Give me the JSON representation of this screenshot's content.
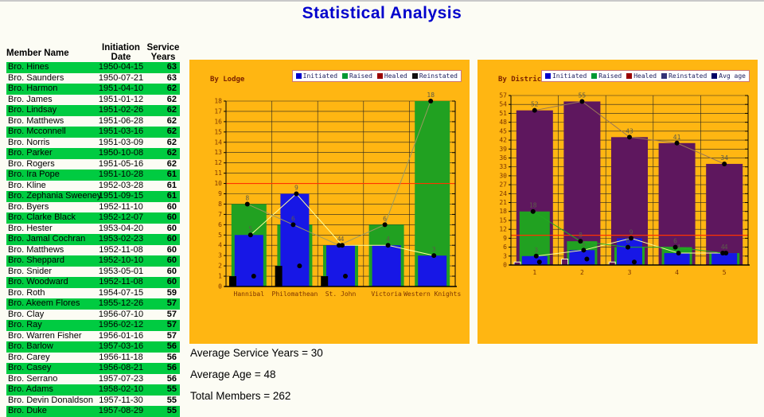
{
  "page": {
    "title": "Statistical Analysis"
  },
  "table": {
    "headers": {
      "name": "Member Name",
      "initiation": [
        "Initiation",
        "Date"
      ],
      "service": [
        "Service",
        "Years"
      ]
    },
    "rows": [
      {
        "name": "Bro. Hines",
        "date": "1950-04-15",
        "years": "63"
      },
      {
        "name": "Bro. Saunders",
        "date": "1950-07-21",
        "years": "63"
      },
      {
        "name": "Bro. Harmon",
        "date": "1951-04-10",
        "years": "62"
      },
      {
        "name": "Bro. James",
        "date": "1951-01-12",
        "years": "62"
      },
      {
        "name": "Bro. Lindsay",
        "date": "1951-02-26",
        "years": "62"
      },
      {
        "name": "Bro. Matthews",
        "date": "1951-06-28",
        "years": "62"
      },
      {
        "name": "Bro. Mcconnell",
        "date": "1951-03-16",
        "years": "62"
      },
      {
        "name": "Bro. Norris",
        "date": "1951-03-09",
        "years": "62"
      },
      {
        "name": "Bro. Parker",
        "date": "1950-10-08",
        "years": "62"
      },
      {
        "name": "Bro. Rogers",
        "date": "1951-05-16",
        "years": "62"
      },
      {
        "name": "Bro. Ira Pope",
        "date": "1951-10-28",
        "years": "61"
      },
      {
        "name": "Bro. Kline",
        "date": "1952-03-28",
        "years": "61"
      },
      {
        "name": "Bro. Zephania Sweeney",
        "date": "1951-09-15",
        "years": "61"
      },
      {
        "name": "Bro. Byers",
        "date": "1952-11-10",
        "years": "60"
      },
      {
        "name": "Bro. Clarke Black",
        "date": "1952-12-07",
        "years": "60"
      },
      {
        "name": "Bro. Hester",
        "date": "1953-04-20",
        "years": "60"
      },
      {
        "name": "Bro. Jamal Cochran",
        "date": "1953-02-23",
        "years": "60"
      },
      {
        "name": "Bro. Matthews",
        "date": "1952-11-08",
        "years": "60"
      },
      {
        "name": "Bro. Sheppard",
        "date": "1952-10-10",
        "years": "60"
      },
      {
        "name": "Bro. Snider",
        "date": "1953-05-01",
        "years": "60"
      },
      {
        "name": "Bro. Woodward",
        "date": "1952-11-08",
        "years": "60"
      },
      {
        "name": "Bro. Roth",
        "date": "1954-07-15",
        "years": "59"
      },
      {
        "name": "Bro. Akeem Flores",
        "date": "1955-12-26",
        "years": "57"
      },
      {
        "name": "Bro. Clay",
        "date": "1956-07-10",
        "years": "57"
      },
      {
        "name": "Bro. Ray",
        "date": "1956-02-12",
        "years": "57"
      },
      {
        "name": "Bro. Warren Fisher",
        "date": "1956-01-16",
        "years": "57"
      },
      {
        "name": "Bro. Barlow",
        "date": "1957-03-16",
        "years": "56"
      },
      {
        "name": "Bro. Carey",
        "date": "1956-11-18",
        "years": "56"
      },
      {
        "name": "Bro. Casey",
        "date": "1956-08-21",
        "years": "56"
      },
      {
        "name": "Bro. Serrano",
        "date": "1957-07-23",
        "years": "56"
      },
      {
        "name": "Bro. Adams",
        "date": "1958-02-10",
        "years": "55"
      },
      {
        "name": "Bro. Devin Donaldson",
        "date": "1957-11-30",
        "years": "55"
      },
      {
        "name": "Bro. Duke",
        "date": "1957-08-29",
        "years": "55"
      }
    ]
  },
  "summary": {
    "lines": [
      "Average Service Years = 30",
      "Average Age = 48",
      "Total Members = 262"
    ]
  },
  "colors": {
    "panel_background": "#ffb612",
    "table_highlight_green": "#00cb41",
    "title_blue": "#0000cc",
    "reference_line_red": "#ff3300"
  },
  "chart_data": [
    {
      "type": "bar",
      "title": "By Lodge",
      "categories": [
        "Hannibal",
        "Philomathean",
        "St. John",
        "Victoria",
        "Western Knights"
      ],
      "series": [
        {
          "name": "Initiated",
          "color": "#1717e6",
          "legend_color": "#0000cc",
          "values": [
            5,
            9,
            4,
            4,
            3
          ]
        },
        {
          "name": "Raised",
          "color": "#21a121",
          "legend_color": "#009933",
          "values": [
            8,
            6,
            4,
            6,
            18
          ]
        },
        {
          "name": "Healed",
          "color": "#990000",
          "legend_color": "#990000",
          "values": [
            0,
            0,
            0,
            0,
            0
          ]
        },
        {
          "name": "Reinstated",
          "color": "#000000",
          "legend_color": "#111111",
          "values": [
            1,
            2,
            1,
            0,
            0
          ]
        }
      ],
      "ylim": [
        0,
        18
      ],
      "tick_step": 1,
      "reference_line": 10,
      "grid": true,
      "legend_position": "top-right",
      "xlabel": "",
      "ylabel": ""
    },
    {
      "type": "bar",
      "title": "By District",
      "categories": [
        "1",
        "2",
        "3",
        "4",
        "5"
      ],
      "series": [
        {
          "name": "Initiated",
          "color": "#1717e6",
          "legend_color": "#0000cc",
          "values": [
            3,
            5,
            9,
            4,
            4
          ]
        },
        {
          "name": "Raised",
          "color": "#21a121",
          "legend_color": "#009933",
          "values": [
            18,
            8,
            6,
            6,
            4
          ]
        },
        {
          "name": "Healed",
          "color": "#990000",
          "legend_color": "#990000",
          "values": [
            0,
            0,
            0,
            0,
            0
          ]
        },
        {
          "name": "Reinstated",
          "color": "#5e175e",
          "legend_color": "#333377",
          "values": [
            1,
            2,
            1,
            0,
            0
          ]
        },
        {
          "name": "Avg age",
          "color": "#5e175e",
          "legend_color": "#000066",
          "values": [
            52,
            55,
            43,
            41,
            34
          ]
        }
      ],
      "ylim": [
        0,
        57
      ],
      "tick_step": 3,
      "reference_line": 10,
      "grid": true,
      "legend_position": "top-right",
      "xlabel": "",
      "ylabel": ""
    }
  ]
}
